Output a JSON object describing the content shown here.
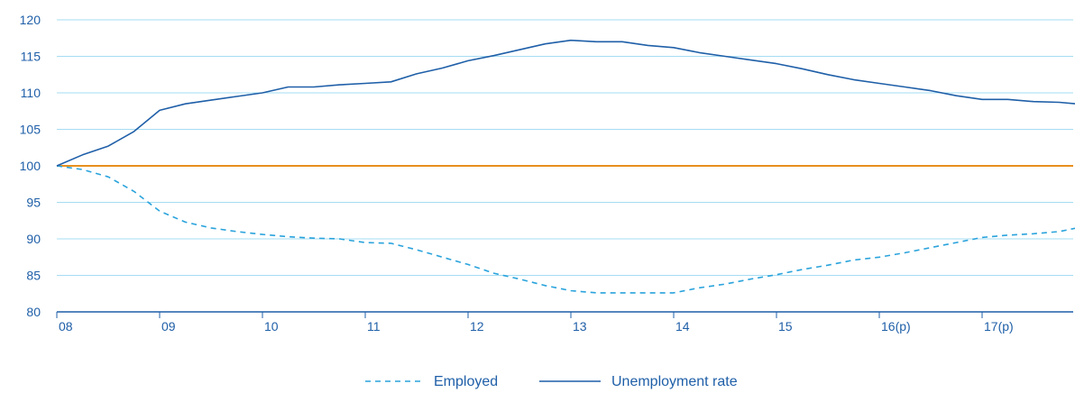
{
  "chart_data": {
    "type": "line",
    "title": "",
    "xlabel": "",
    "ylabel": "",
    "x_tick_labels": [
      "08",
      "09",
      "10",
      "11",
      "12",
      "13",
      "14",
      "15",
      "16(p)",
      "17(p)"
    ],
    "y_tick_labels": [
      "80",
      "85",
      "90",
      "95",
      "100",
      "105",
      "110",
      "115",
      "120"
    ],
    "ylim": [
      80,
      120
    ],
    "xlim": [
      2008.0,
      2017.92
    ],
    "grid": "horizontal",
    "legend_position": "bottom-center",
    "reference_line": {
      "value": 100,
      "color": "#e8901e"
    },
    "series": [
      {
        "name": "Employed",
        "style": "dashed",
        "color": "#2aa3dc",
        "x": [
          2008.0,
          2008.25,
          2008.5,
          2008.75,
          2009.0,
          2009.25,
          2009.5,
          2009.75,
          2010.0,
          2010.25,
          2010.5,
          2010.75,
          2011.0,
          2011.25,
          2011.5,
          2011.75,
          2012.0,
          2012.25,
          2012.5,
          2012.75,
          2013.0,
          2013.25,
          2013.5,
          2013.75,
          2014.0,
          2014.25,
          2014.5,
          2014.75,
          2015.0,
          2015.25,
          2015.5,
          2015.75,
          2016.0,
          2016.25,
          2016.5,
          2016.75,
          2017.0,
          2017.25,
          2017.5,
          2017.75,
          2017.92
        ],
        "values": [
          100.0,
          99.5,
          98.5,
          96.5,
          93.8,
          92.3,
          91.5,
          91.0,
          90.6,
          90.3,
          90.1,
          90.0,
          89.5,
          89.4,
          88.5,
          87.5,
          86.5,
          85.3,
          84.5,
          83.6,
          82.9,
          82.6,
          82.6,
          82.6,
          82.6,
          83.3,
          83.8,
          84.5,
          85.1,
          85.8,
          86.4,
          87.1,
          87.5,
          88.1,
          88.8,
          89.5,
          90.2,
          90.5,
          90.7,
          91.0,
          91.5
        ]
      },
      {
        "name": "Unemployment rate",
        "style": "solid",
        "color": "#1f5fa8",
        "x": [
          2008.0,
          2008.25,
          2008.5,
          2008.75,
          2009.0,
          2009.25,
          2009.5,
          2009.75,
          2010.0,
          2010.25,
          2010.5,
          2010.75,
          2011.0,
          2011.25,
          2011.5,
          2011.75,
          2012.0,
          2012.25,
          2012.5,
          2012.75,
          2013.0,
          2013.25,
          2013.5,
          2013.75,
          2014.0,
          2014.25,
          2014.5,
          2014.75,
          2015.0,
          2015.25,
          2015.5,
          2015.75,
          2016.0,
          2016.25,
          2016.5,
          2016.75,
          2017.0,
          2017.25,
          2017.5,
          2017.75,
          2017.92
        ],
        "values": [
          100.0,
          101.5,
          102.7,
          104.7,
          107.6,
          108.5,
          109.0,
          109.5,
          110.0,
          110.8,
          110.8,
          111.1,
          111.3,
          111.5,
          112.6,
          113.4,
          114.4,
          115.1,
          115.9,
          116.7,
          117.2,
          117.0,
          117.0,
          116.5,
          116.2,
          115.5,
          115.0,
          114.5,
          114.0,
          113.3,
          112.5,
          111.8,
          111.3,
          110.8,
          110.3,
          109.6,
          109.1,
          109.1,
          108.8,
          108.7,
          108.5
        ]
      }
    ],
    "legend": [
      {
        "label": "Employed",
        "style": "dashed",
        "color": "#2aa3dc"
      },
      {
        "label": "Unemployment rate",
        "style": "solid",
        "color": "#1f5fa8"
      }
    ]
  },
  "colors": {
    "gridline": "#a6dcf3",
    "axis": "#1f5fa8",
    "tick_text": "#1f5fa8",
    "reference": "#e8901e"
  }
}
